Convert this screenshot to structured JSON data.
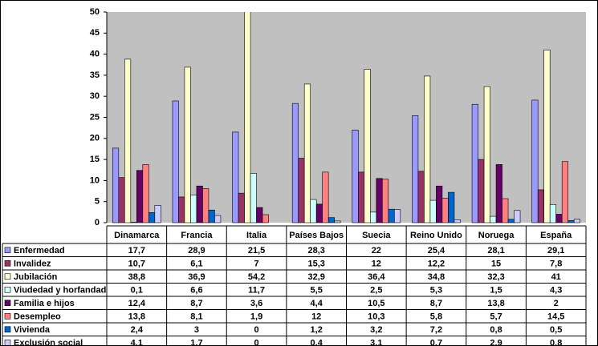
{
  "chart_data": {
    "type": "bar",
    "categories": [
      "Dinamarca",
      "Francia",
      "Italia",
      "Países Bajos",
      "Suecia",
      "Reino Unido",
      "Noruega",
      "España"
    ],
    "series": [
      {
        "name": "Enfermedad",
        "color": "#9999ff",
        "values": [
          17.7,
          28.9,
          21.5,
          28.3,
          22,
          25.4,
          28.1,
          29.1
        ],
        "value_labels": [
          "17,7",
          "28,9",
          "21,5",
          "28,3",
          "22",
          "25,4",
          "28,1",
          "29,1"
        ]
      },
      {
        "name": "Invalidez",
        "color": "#993366",
        "values": [
          10.7,
          6.1,
          7,
          15.3,
          12,
          12.2,
          15,
          7.8
        ],
        "value_labels": [
          "10,7",
          "6,1",
          "7",
          "15,3",
          "12",
          "12,2",
          "15",
          "7,8"
        ]
      },
      {
        "name": "Jubilación",
        "color": "#ffffcc",
        "values": [
          38.8,
          36.9,
          54.2,
          32.9,
          36.4,
          34.8,
          32.3,
          41
        ],
        "value_labels": [
          "38,8",
          "36,9",
          "54,2",
          "32,9",
          "36,4",
          "34,8",
          "32,3",
          "41"
        ]
      },
      {
        "name": "Viudedad y horfandad",
        "color": "#ccffff",
        "values": [
          0.1,
          6.6,
          11.7,
          5.5,
          2.5,
          5.3,
          1.5,
          4.3
        ],
        "value_labels": [
          "0,1",
          "6,6",
          "11,7",
          "5,5",
          "2,5",
          "5,3",
          "1,5",
          "4,3"
        ]
      },
      {
        "name": "Familia e hijos",
        "color": "#660066",
        "values": [
          12.4,
          8.7,
          3.6,
          4.4,
          10.5,
          8.7,
          13.8,
          2
        ],
        "value_labels": [
          "12,4",
          "8,7",
          "3,6",
          "4,4",
          "10,5",
          "8,7",
          "13,8",
          "2"
        ]
      },
      {
        "name": "Desempleo",
        "color": "#ff8080",
        "values": [
          13.8,
          8.1,
          1.9,
          12,
          10.3,
          5.8,
          5.7,
          14.5
        ],
        "value_labels": [
          "13,8",
          "8,1",
          "1,9",
          "12",
          "10,3",
          "5,8",
          "5,7",
          "14,5"
        ]
      },
      {
        "name": "Vivienda",
        "color": "#0066cc",
        "values": [
          2.4,
          3,
          0,
          1.2,
          3.2,
          7.2,
          0.8,
          0.5
        ],
        "value_labels": [
          "2,4",
          "3",
          "0",
          "1,2",
          "3,2",
          "7,2",
          "0,8",
          "0,5"
        ]
      },
      {
        "name": "Exclusión social",
        "color": "#ccccff",
        "values": [
          4.1,
          1.7,
          0,
          0.4,
          3.1,
          0.7,
          2.9,
          0.8
        ],
        "value_labels": [
          "4,1",
          "1,7",
          "0",
          "0,4",
          "3,1",
          "0,7",
          "2,9",
          "0,8"
        ]
      }
    ],
    "ylim": [
      0,
      50
    ],
    "yticks": [
      0,
      5,
      10,
      15,
      20,
      25,
      30,
      35,
      40,
      45,
      50
    ],
    "grid": false
  }
}
